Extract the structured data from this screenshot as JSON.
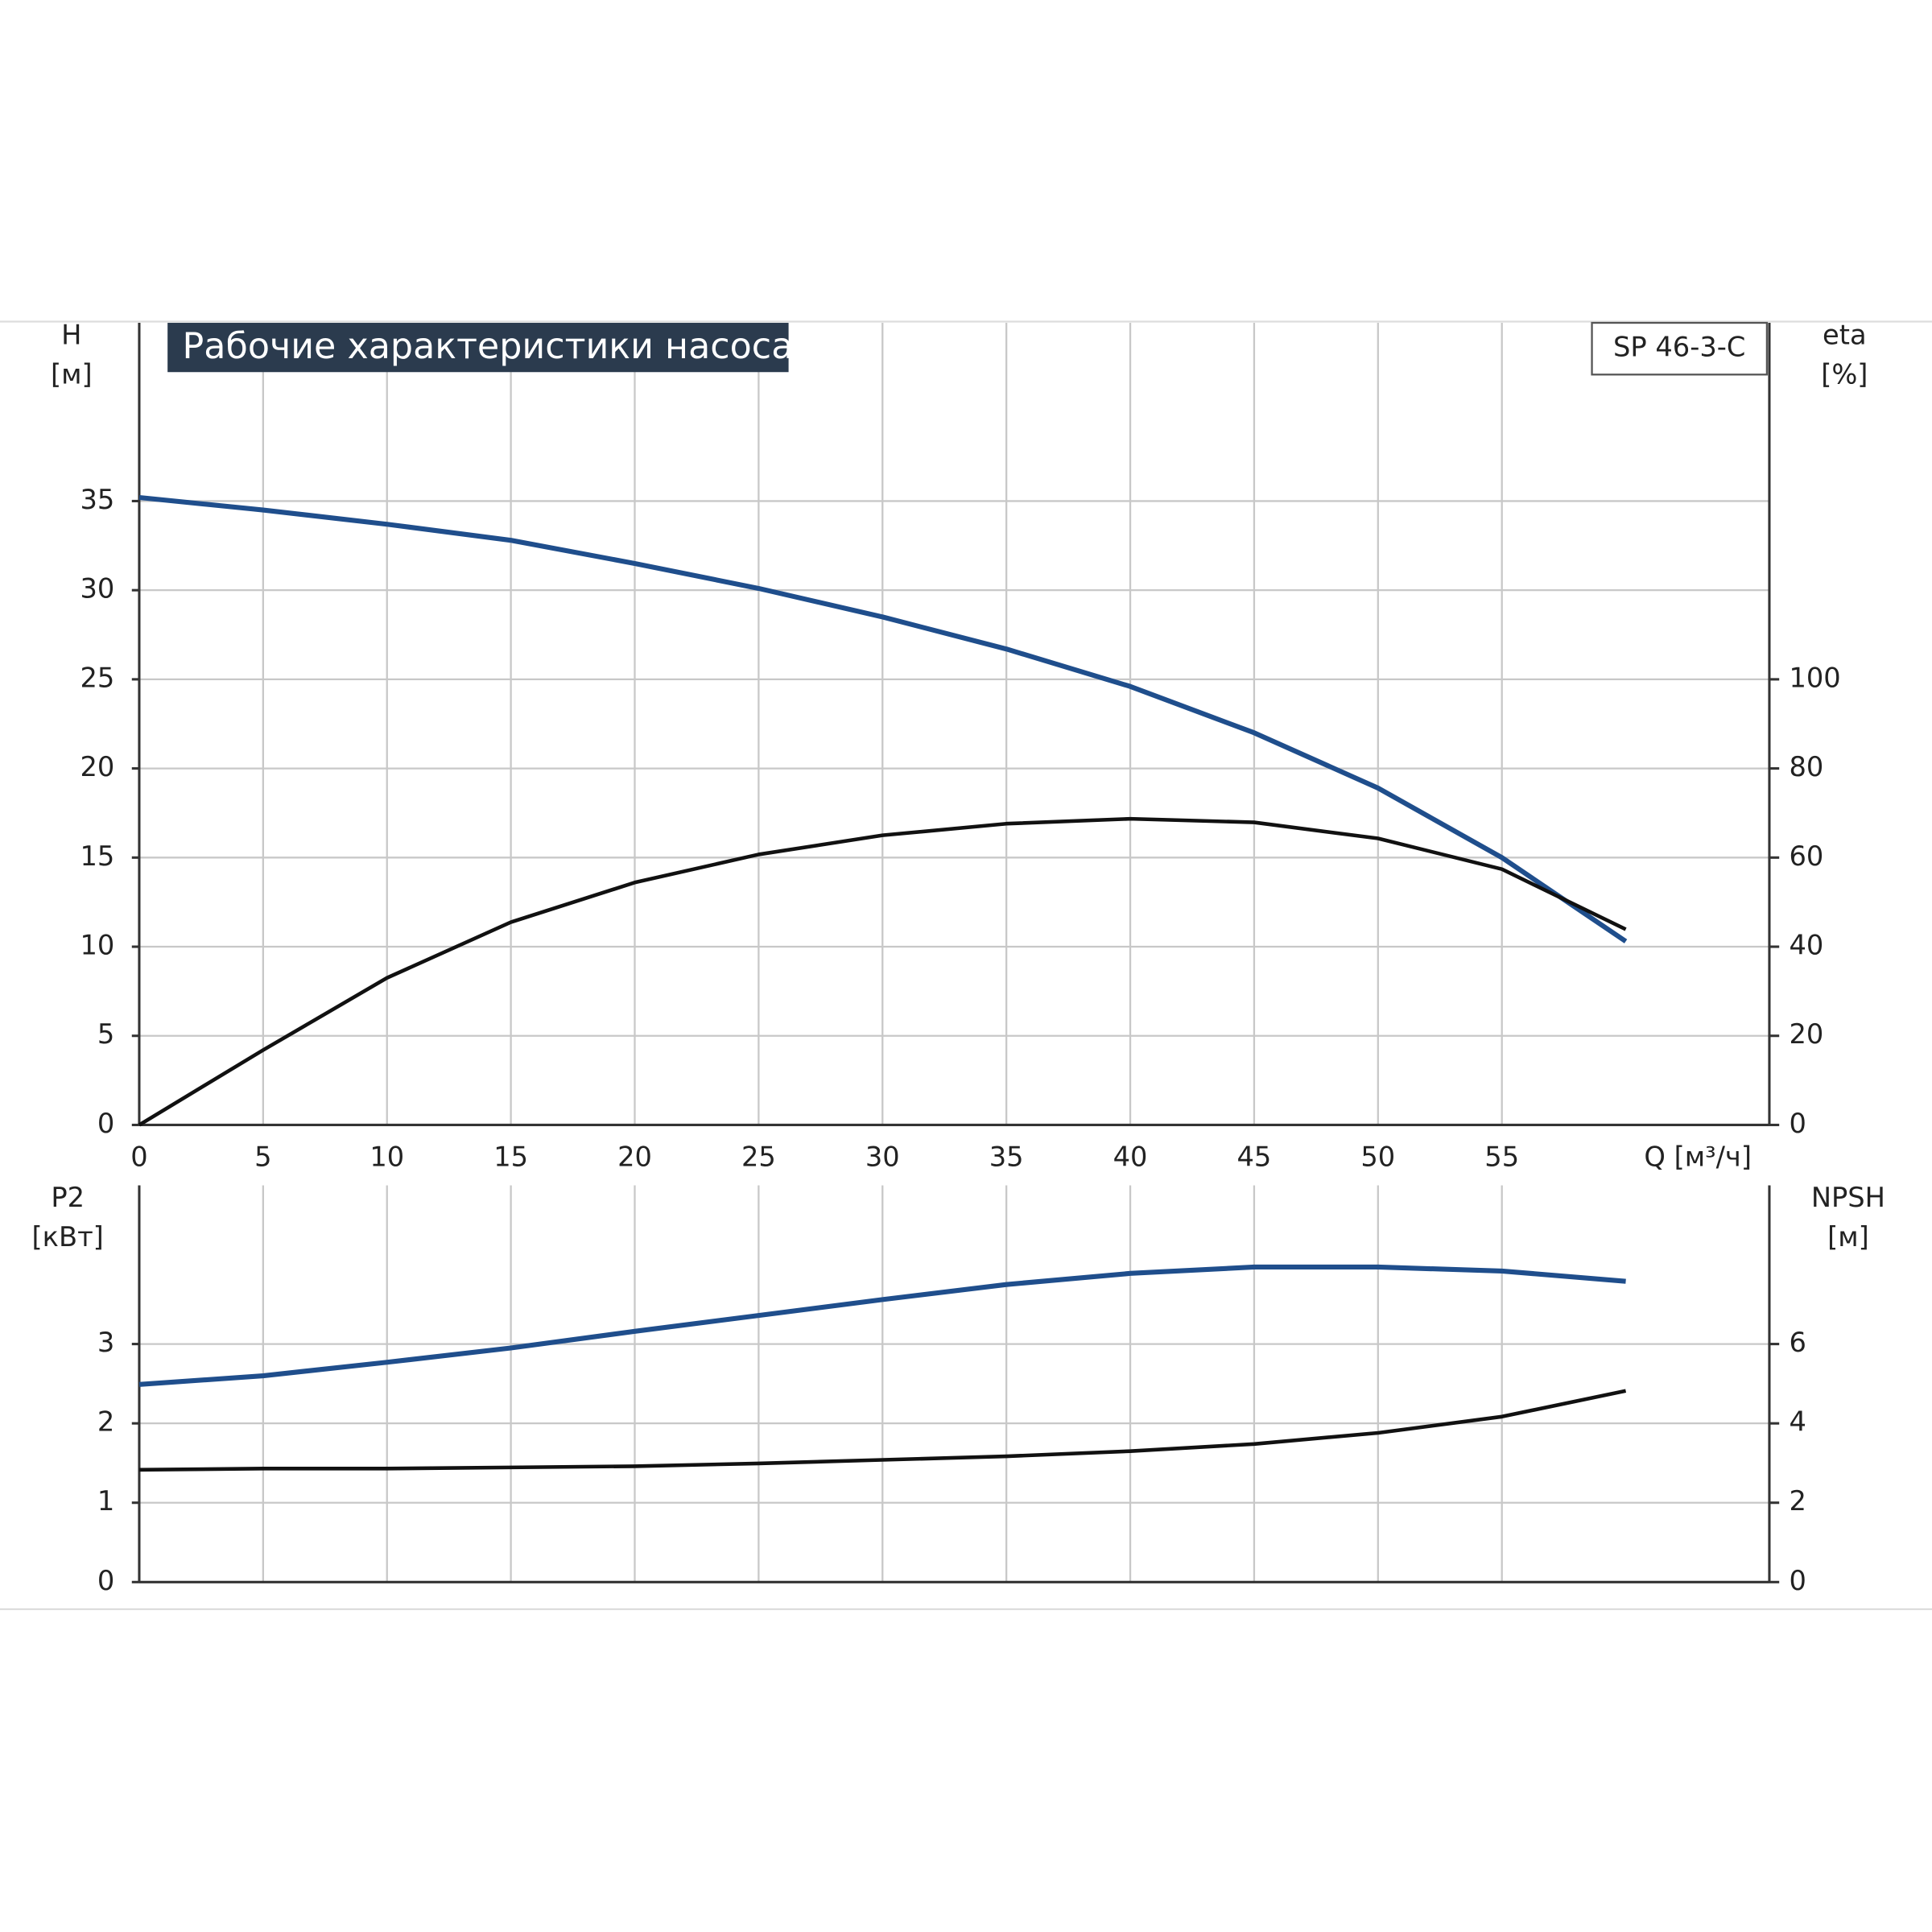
{
  "chart_data": [
    {
      "type": "line",
      "title": "Рабочие характеристики насоса",
      "model": "SP 46-3-C",
      "ylabel": "H",
      "yunit": "[м]",
      "y2label": "eta",
      "y2unit": "[%]",
      "xlabel": "Q [м³/ч]",
      "x": [
        0,
        5,
        10,
        15,
        20,
        25,
        30,
        35,
        40,
        45,
        50,
        55,
        60
      ],
      "xlim": [
        0,
        65
      ],
      "xticks": [
        0,
        5,
        10,
        15,
        20,
        25,
        30,
        35,
        40,
        45,
        50,
        55
      ],
      "ylim": [
        0,
        45
      ],
      "yticks": [
        0,
        5,
        10,
        15,
        20,
        25,
        30,
        35
      ],
      "y2lim": [
        0,
        180
      ],
      "y2ticks": [
        0,
        20,
        40,
        60,
        80,
        100
      ],
      "grid": true,
      "series": [
        {
          "color": "#1f4e8c",
          "values": [
            35.2,
            34.5,
            33.7,
            32.8,
            31.5,
            30.1,
            28.5,
            26.7,
            24.6,
            22.0,
            18.9,
            15.0,
            10.3
          ]
        },
        {
          "color": "#111111",
          "axis": "y2",
          "values": [
            0,
            16.8,
            33,
            45.5,
            54.4,
            60.7,
            65,
            67.6,
            68.7,
            67.9,
            64.3,
            57.4,
            43.9
          ]
        }
      ]
    },
    {
      "type": "line",
      "ylabel": "P2",
      "yunit": "[кВт]",
      "y2label": "NPSH",
      "y2unit": "[м]",
      "x": [
        0,
        5,
        10,
        15,
        20,
        25,
        30,
        35,
        40,
        45,
        50,
        55,
        60
      ],
      "xlim": [
        0,
        65
      ],
      "ylim": [
        0,
        5
      ],
      "yticks": [
        0,
        1,
        2,
        3
      ],
      "y2lim": [
        0,
        10
      ],
      "y2ticks": [
        0,
        2,
        4,
        6
      ],
      "grid": true,
      "series": [
        {
          "color": "#1f4e8c",
          "values": [
            2.49,
            2.6,
            2.77,
            2.95,
            3.16,
            3.36,
            3.56,
            3.75,
            3.89,
            3.97,
            3.97,
            3.92,
            3.79
          ]
        },
        {
          "color": "#111111",
          "axis": "y2",
          "values": [
            2.83,
            2.86,
            2.86,
            2.89,
            2.92,
            2.99,
            3.08,
            3.17,
            3.3,
            3.48,
            3.76,
            4.17,
            4.82
          ]
        }
      ]
    }
  ]
}
